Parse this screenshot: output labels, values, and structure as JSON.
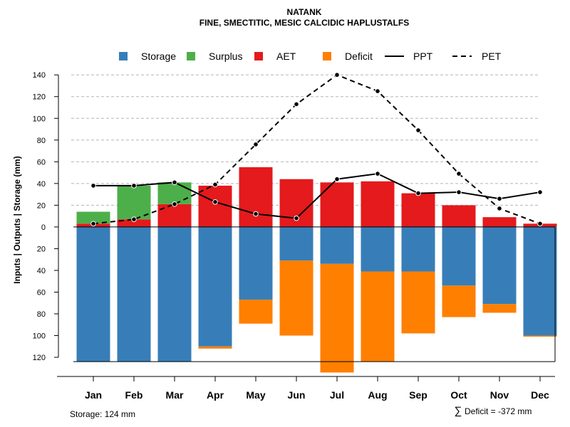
{
  "chart_data": {
    "type": "bar",
    "title": "NATANK",
    "subtitle": "FINE, SMECTITIC, MESIC CALCIDIC HAPLUSTALFS",
    "ylabel": "Inputs | Outputs | Storage     (mm)",
    "ylim": [
      -137,
      148
    ],
    "yticks": [
      140,
      120,
      100,
      80,
      60,
      40,
      20,
      0,
      -20,
      -40,
      -60,
      -80,
      -100,
      -120
    ],
    "ytick_labels": [
      "140",
      "120",
      "100",
      "80",
      "60",
      "40",
      "20",
      "0",
      "20",
      "40",
      "60",
      "80",
      "100",
      "120"
    ],
    "grid": "horizontal dashed (positive side)",
    "legend_position": "top",
    "legend": [
      {
        "label": "Storage",
        "kind": "box",
        "color": "#377EB8"
      },
      {
        "label": "Surplus",
        "kind": "box",
        "color": "#4DAF4A"
      },
      {
        "label": "AET",
        "kind": "box",
        "color": "#E41A1C"
      },
      {
        "label": "Deficit",
        "kind": "box",
        "color": "#FF7F00"
      },
      {
        "label": "PPT",
        "kind": "solid",
        "color": "#000000"
      },
      {
        "label": "PET",
        "kind": "dashed",
        "color": "#000000"
      }
    ],
    "categories": [
      "Jan",
      "Feb",
      "Mar",
      "Apr",
      "May",
      "Jun",
      "Jul",
      "Aug",
      "Sep",
      "Oct",
      "Nov",
      "Dec"
    ],
    "series": [
      {
        "name": "AET",
        "color": "#E41A1C",
        "values": [
          3,
          7,
          21,
          38,
          55,
          44,
          41,
          42,
          31,
          20,
          9,
          3
        ]
      },
      {
        "name": "Surplus",
        "color": "#4DAF4A",
        "values": [
          11,
          31,
          20,
          0,
          0,
          0,
          0,
          0,
          0,
          0,
          0,
          0
        ]
      },
      {
        "name": "Storage",
        "color": "#377EB8",
        "values": [
          124,
          124,
          124,
          110,
          67,
          31,
          34,
          41,
          41,
          54,
          71,
          100
        ]
      },
      {
        "name": "Deficit",
        "color": "#FF7F00",
        "values": [
          0,
          0,
          0,
          2,
          22,
          69,
          100,
          83,
          57,
          29,
          8,
          1
        ]
      },
      {
        "name": "PPT",
        "color": "#000000",
        "values": [
          38,
          38,
          41,
          23,
          12,
          8,
          44,
          49,
          31,
          32,
          26,
          32
        ]
      },
      {
        "name": "PET",
        "color": "#000000",
        "values": [
          3,
          7,
          21,
          39,
          76,
          113,
          140,
          125,
          89,
          49,
          17,
          3
        ]
      }
    ],
    "footer_left": "Storage: 124 mm",
    "footer_right_symbol": "∑",
    "footer_right": "Deficit = -372 mm"
  }
}
